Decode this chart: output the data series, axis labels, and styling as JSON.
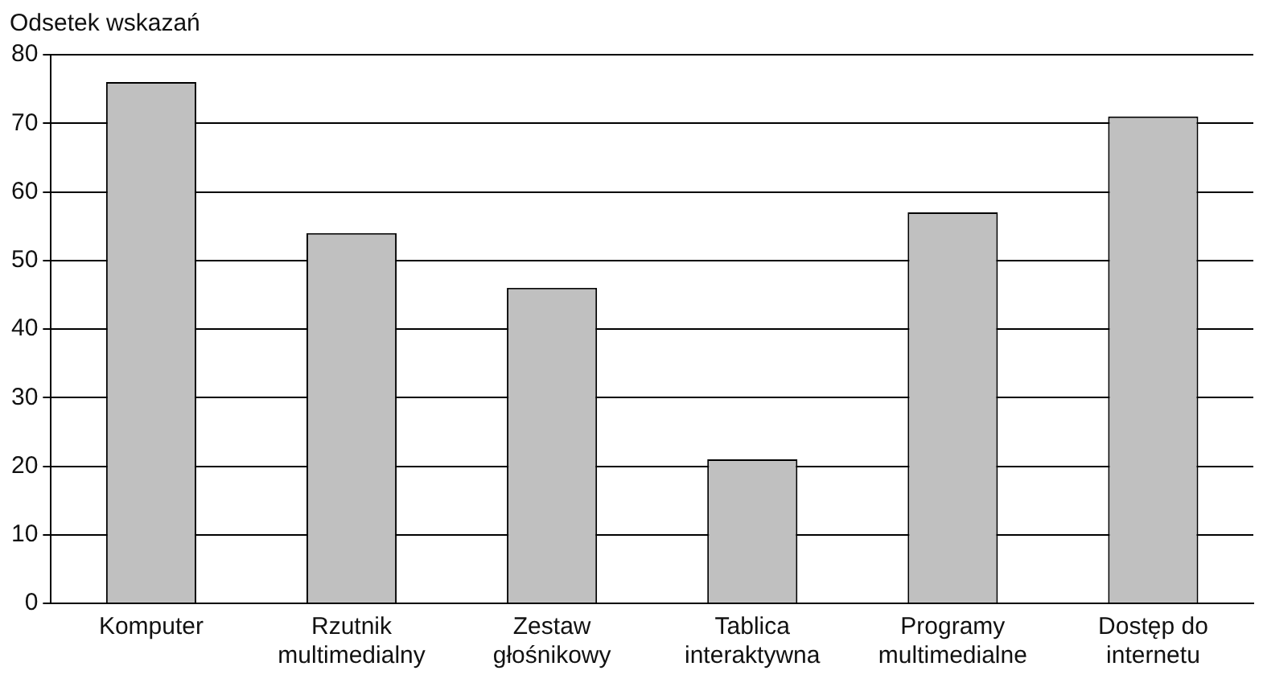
{
  "chart_data": {
    "type": "bar",
    "ylabel": "Odsetek wskazań",
    "categories": [
      "Komputer",
      "Rzutnik multimedialny",
      "Zestaw głośnikowy",
      "Tablica interaktywna",
      "Programy multimedialne",
      "Dostęp do internetu"
    ],
    "values": [
      76,
      54,
      46,
      21,
      57,
      71
    ],
    "color": "#c0c0c0",
    "ylim": [
      0,
      80
    ],
    "yticks": [
      0,
      10,
      20,
      30,
      40,
      50,
      60,
      70,
      80
    ],
    "grid": "y",
    "legend": false
  }
}
